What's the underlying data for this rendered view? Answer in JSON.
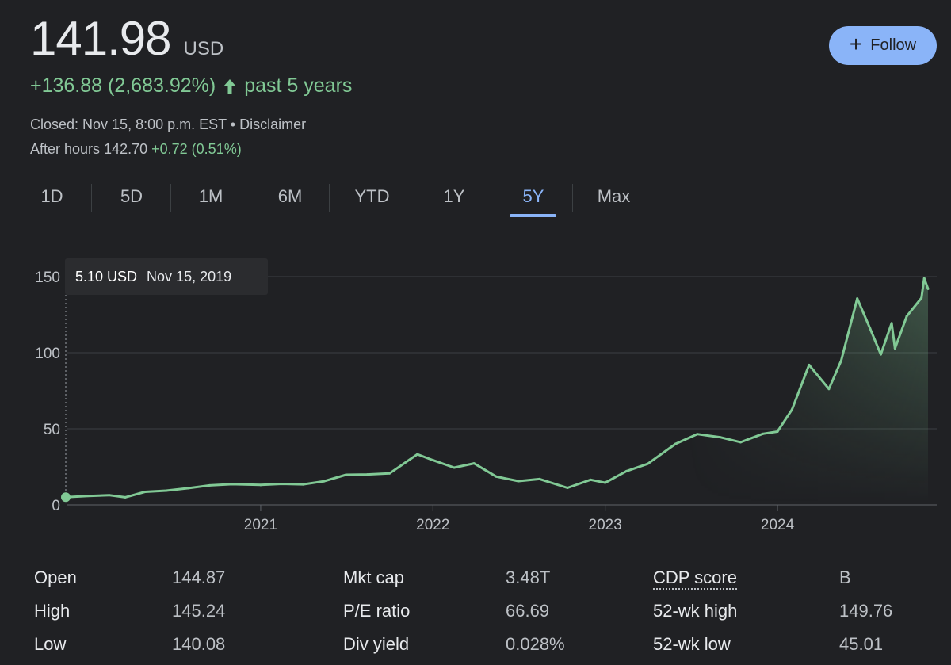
{
  "quote": {
    "price": "141.98",
    "currency": "USD",
    "change": "+136.88 (2,683.92%)",
    "period": "past 5 years",
    "status_text": "Closed: Nov 15, 8:00 p.m. EST • Disclaimer",
    "after_hours_label": "After hours 142.70",
    "after_hours_change": "+0.72 (0.51%)"
  },
  "follow_button": {
    "label": "Follow"
  },
  "tabs": [
    {
      "label": "1D"
    },
    {
      "label": "5D"
    },
    {
      "label": "1M"
    },
    {
      "label": "6M"
    },
    {
      "label": "YTD"
    },
    {
      "label": "1Y"
    },
    {
      "label": "5Y",
      "active": true
    },
    {
      "label": "Max"
    }
  ],
  "tooltip": {
    "value": "5.10 USD",
    "date": "Nov 15, 2019"
  },
  "colors": {
    "line": "#81c995",
    "accent": "#8ab4f8",
    "background": "#202124"
  },
  "chart_data": {
    "type": "area",
    "ylim": [
      0,
      150
    ],
    "yticks": [
      0,
      50,
      100,
      150
    ],
    "ytick_labels": [
      "0",
      "50",
      "100",
      "150"
    ],
    "xlim": [
      "2019-11-15",
      "2024-11-15"
    ],
    "xticks": [
      "2021-01-01",
      "2022-01-01",
      "2023-01-01",
      "2024-01-01"
    ],
    "xtick_labels": [
      "2021",
      "2022",
      "2023",
      "2024"
    ],
    "grid": true,
    "series": [
      {
        "x": [
          "2019-11-15",
          "2020-01-01",
          "2020-02-15",
          "2020-03-20",
          "2020-05-01",
          "2020-06-15",
          "2020-08-01",
          "2020-09-15",
          "2020-11-01",
          "2021-01-01",
          "2021-02-15",
          "2021-04-01",
          "2021-05-15",
          "2021-07-01",
          "2021-08-15",
          "2021-10-01",
          "2021-11-29",
          "2022-01-01",
          "2022-02-15",
          "2022-03-29",
          "2022-05-15",
          "2022-07-01",
          "2022-08-15",
          "2022-10-13",
          "2022-12-01",
          "2023-01-01",
          "2023-02-15",
          "2023-04-01",
          "2023-05-30",
          "2023-07-15",
          "2023-09-01",
          "2023-10-15",
          "2023-12-01",
          "2024-01-01",
          "2024-02-01",
          "2024-03-08",
          "2024-04-19",
          "2024-05-15",
          "2024-06-18",
          "2024-07-15",
          "2024-08-07",
          "2024-08-30",
          "2024-09-06",
          "2024-10-01",
          "2024-11-01",
          "2024-11-07",
          "2024-11-15"
        ],
        "y": [
          5.1,
          5.9,
          6.4,
          5.0,
          8.6,
          9.4,
          11.0,
          12.8,
          13.6,
          13.1,
          13.8,
          13.5,
          15.5,
          19.8,
          20.0,
          20.7,
          33.3,
          29.4,
          24.5,
          27.3,
          18.6,
          15.6,
          17.0,
          11.2,
          16.5,
          14.6,
          22.2,
          27.0,
          40.1,
          46.5,
          44.5,
          41.2,
          46.7,
          48.2,
          62.8,
          92.0,
          76.2,
          94.8,
          135.6,
          116.0,
          98.9,
          119.4,
          102.8,
          124.0,
          136.0,
          148.9,
          141.98
        ]
      }
    ]
  },
  "stats": [
    {
      "label": "Open",
      "value": "144.87"
    },
    {
      "label": "High",
      "value": "145.24"
    },
    {
      "label": "Low",
      "value": "140.08"
    },
    {
      "label": "Mkt cap",
      "value": "3.48T"
    },
    {
      "label": "P/E ratio",
      "value": "66.69"
    },
    {
      "label": "Div yield",
      "value": "0.028%"
    },
    {
      "label": "CDP score",
      "value": "B"
    },
    {
      "label": "52-wk high",
      "value": "149.76"
    },
    {
      "label": "52-wk low",
      "value": "45.01"
    }
  ]
}
